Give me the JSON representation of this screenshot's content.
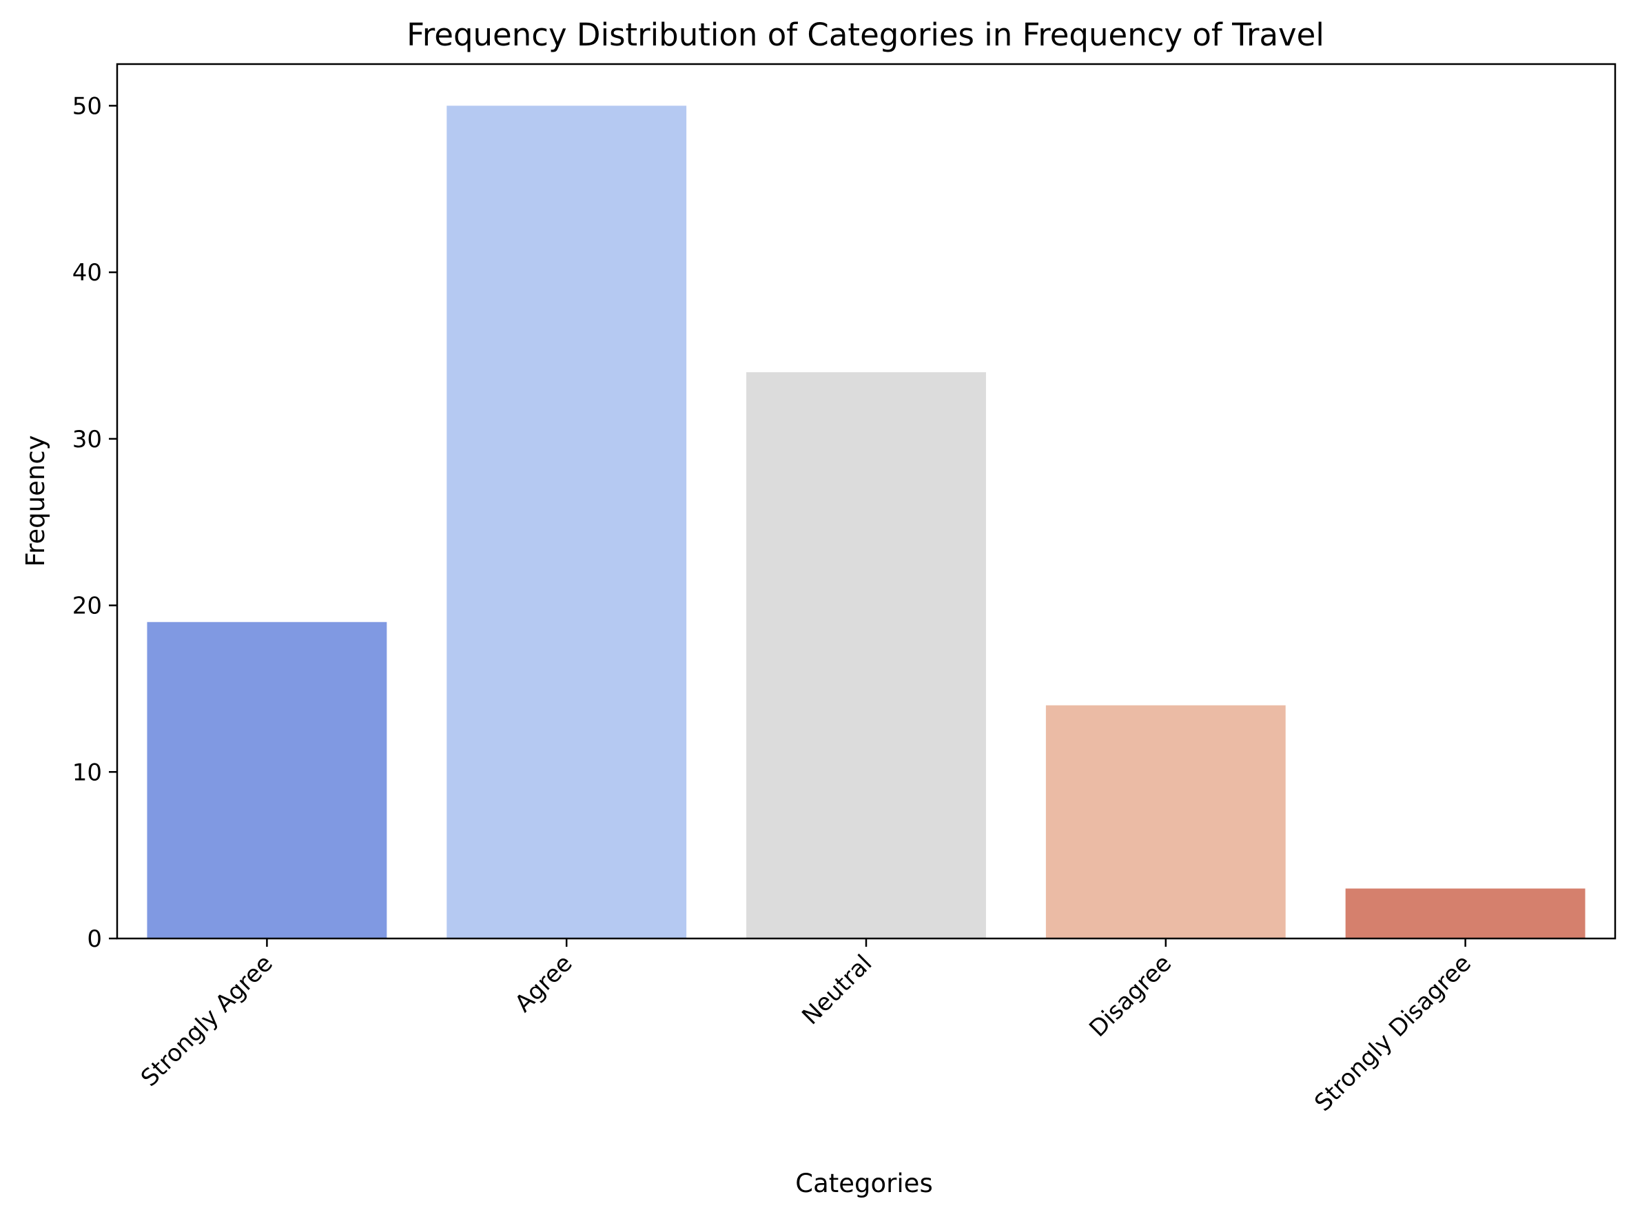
{
  "chart_data": {
    "type": "bar",
    "title": "Frequency Distribution of Categories in Frequency of Travel",
    "xlabel": "Categories",
    "ylabel": "Frequency",
    "categories": [
      "Strongly Agree",
      "Agree",
      "Neutral",
      "Disagree",
      "Strongly Disagree"
    ],
    "values": [
      19,
      50,
      34,
      14,
      3
    ],
    "colors": [
      "#8099e2",
      "#b5c9f2",
      "#dcdcdc",
      "#ebbba5",
      "#d5806d"
    ],
    "yticks": [
      0,
      10,
      20,
      30,
      40,
      50
    ],
    "ylim": [
      0,
      52.5
    ],
    "grid": false,
    "legend": false
  }
}
